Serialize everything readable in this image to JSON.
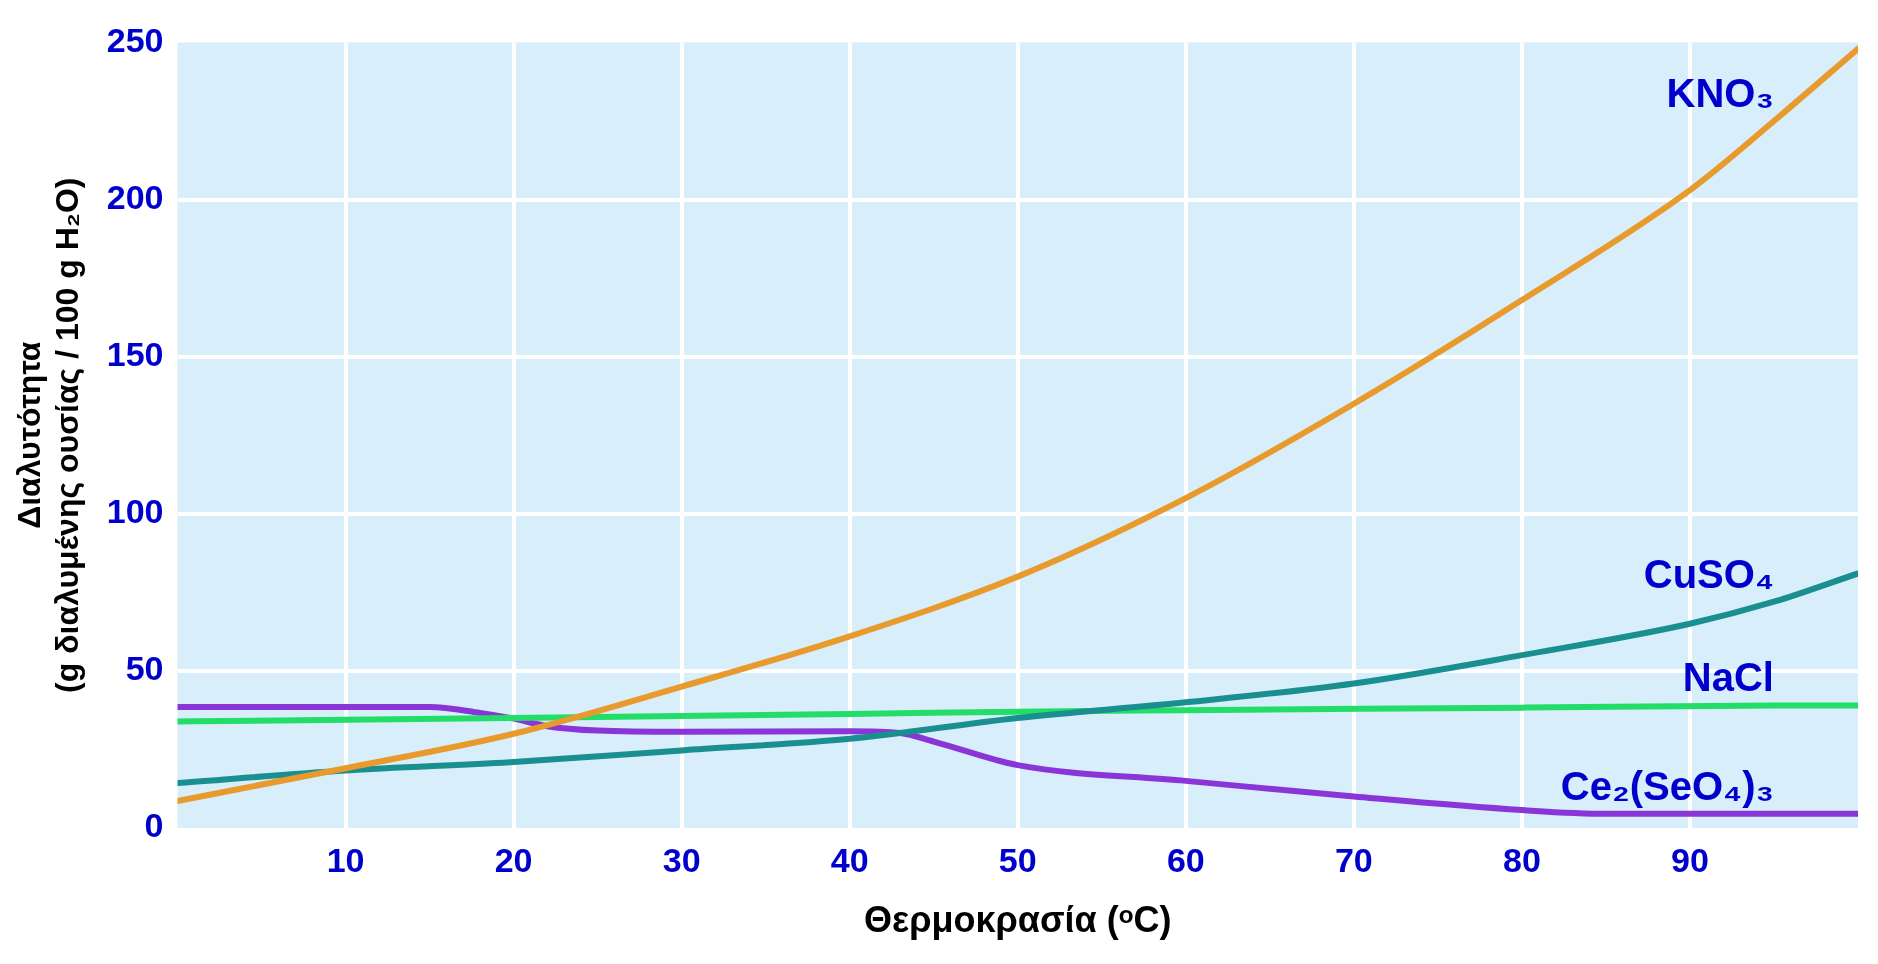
{
  "chart_data": {
    "type": "line",
    "xlabel": "Θερμοκρασία (ᵒC)",
    "ylabel": "Διαλυτότητα\n(g διαλυμένης ουσίας / 100 g H₂O)",
    "xlim": [
      0,
      100
    ],
    "xticks": [
      10,
      20,
      30,
      40,
      50,
      60,
      70,
      80,
      90
    ],
    "ylim": [
      0,
      250
    ],
    "yticks": [
      0,
      50,
      100,
      150,
      200,
      250
    ],
    "grid": true,
    "legend": false,
    "marker": "none",
    "line_style": "solid",
    "series": [
      {
        "name": "KNO₃",
        "color": "#e89a2c",
        "x": [
          0,
          10,
          20,
          30,
          40,
          50,
          60,
          70,
          80,
          90,
          95,
          100
        ],
        "values": [
          8.6,
          19,
          30,
          45,
          61,
          80,
          105,
          135,
          168,
          203,
          225,
          248
        ]
      },
      {
        "name": "CuSO₄",
        "color": "#1a8f8f",
        "x": [
          0,
          10,
          20,
          30,
          40,
          50,
          60,
          70,
          80,
          90,
          95,
          100
        ],
        "values": [
          14.3,
          18.3,
          21,
          24.7,
          28.4,
          35,
          40,
          46,
          55,
          65,
          72,
          81
        ]
      },
      {
        "name": "NaCl",
        "color": "#22dd66",
        "x": [
          0,
          20,
          40,
          50,
          60,
          80,
          95,
          100
        ],
        "values": [
          33.9,
          35,
          36.3,
          37,
          37.5,
          38.3,
          39,
          39
        ]
      },
      {
        "name": "Ce₂(SeO₄)₃",
        "color": "#8a35d8",
        "x": [
          0,
          15,
          18,
          20,
          22,
          25,
          30,
          40,
          43,
          45,
          50,
          60,
          70,
          80,
          85,
          95,
          100
        ],
        "values": [
          38.5,
          38.5,
          36.6,
          34.8,
          32.4,
          31,
          30.6,
          30.8,
          30.2,
          27.5,
          20,
          15,
          10,
          5.7,
          4.5,
          4.5,
          4.5
        ]
      }
    ]
  }
}
